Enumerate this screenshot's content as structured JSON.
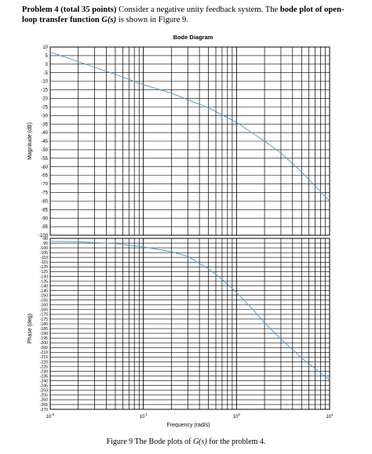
{
  "problem": {
    "label": "Problem 4 (total 35 points)",
    "text1": " Consider a negative unity feedback system. The ",
    "bold2": "bode plot of open-loop transfer function ",
    "func": "G(s)",
    "text3": " is shown in Figure 9."
  },
  "caption": {
    "prefix": "Figure 9 The Bode plots of ",
    "func": "G(s)",
    "suffix": "  for the problem 4."
  },
  "colors": {
    "curve": "#4a9fd8",
    "grid": "#000000"
  },
  "chart_data": {
    "type": "line",
    "title": "Bode Diagram",
    "xlabel": "Frequency  (rad/s)",
    "x_scale": "log",
    "xlim": [
      0.01,
      10
    ],
    "x_ticks": [
      0.01,
      0.1,
      1,
      10
    ],
    "x_tick_labels": [
      "10",
      "10",
      "10",
      "10"
    ],
    "x_tick_exponents": [
      "-2",
      "-1",
      "0",
      "1"
    ],
    "grid": true,
    "panels": [
      {
        "name": "magnitude",
        "ylabel": "Magnitude (dB)",
        "ylim": [
          -100,
          10
        ],
        "y_ticks": [
          10,
          5,
          0,
          -5,
          -10,
          -15,
          -20,
          -25,
          -30,
          -35,
          -40,
          -45,
          -50,
          -55,
          -60,
          -65,
          -70,
          -75,
          -80,
          -85,
          -90,
          -95,
          -100
        ],
        "series": [
          {
            "x": [
              0.01,
              0.02,
              0.05,
              0.1,
              0.2,
              0.5,
              1,
              2,
              3,
              5,
              10
            ],
            "y": [
              7,
              1.5,
              -6,
              -12,
              -17,
              -25.5,
              -34,
              -45,
              -52,
              -63,
              -80
            ]
          }
        ]
      },
      {
        "name": "phase",
        "ylabel": "Phase (deg)",
        "ylim": [
          -270,
          -90
        ],
        "y_ticks": [
          -90,
          -95,
          -100,
          -105,
          -110,
          -115,
          -120,
          -125,
          -130,
          -135,
          -140,
          -145,
          -150,
          -155,
          -160,
          -165,
          -170,
          -175,
          -180,
          -185,
          -190,
          -195,
          -200,
          -205,
          -210,
          -215,
          -220,
          -225,
          -230,
          -235,
          -240,
          -245,
          -250,
          -255,
          -260,
          -265,
          -270
        ],
        "series": [
          {
            "x": [
              0.01,
              0.02,
              0.05,
              0.1,
              0.2,
              0.3,
              0.5,
              0.7,
              1,
              1.5,
              2,
              3,
              5,
              10
            ],
            "y": [
              -93,
              -93.5,
              -95.5,
              -99,
              -104,
              -109,
              -122,
              -133,
              -147,
              -165,
              -179,
              -196,
              -216,
              -239
            ]
          }
        ]
      }
    ]
  }
}
